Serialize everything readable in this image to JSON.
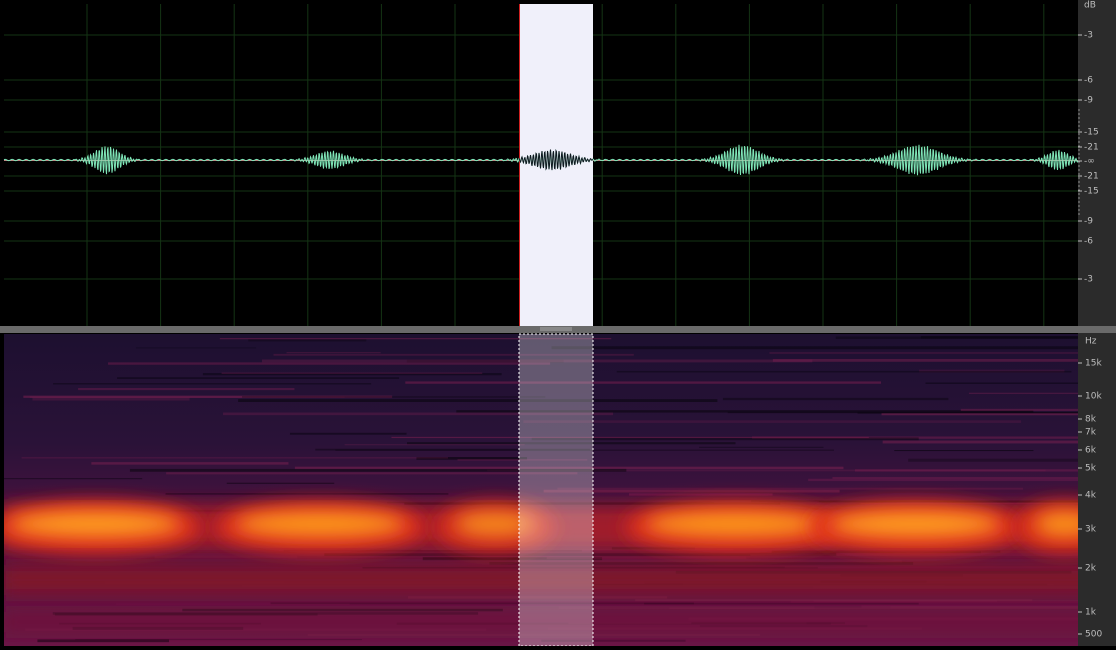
{
  "waveform_scale": {
    "unit": "dB",
    "labels": [
      "-3",
      "-6",
      "-9",
      "-15",
      "-21",
      "-∞",
      "-21",
      "-15",
      "-9",
      "-6",
      "-3"
    ]
  },
  "spectrogram_scale": {
    "unit": "Hz",
    "labels": [
      "15k",
      "10k",
      "8k",
      "7k",
      "6k",
      "5k",
      "4k",
      "3k",
      "2k",
      "1k",
      "500"
    ]
  }
}
